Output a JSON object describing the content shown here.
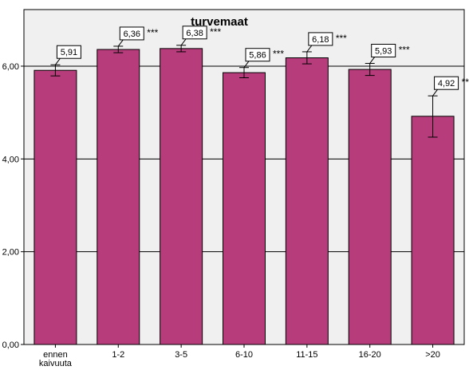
{
  "chart_data": {
    "type": "bar",
    "title": "turvemaat",
    "categories": [
      [
        "ennen",
        "kaivuuta"
      ],
      [
        "1-2"
      ],
      [
        "3-5"
      ],
      [
        "6-10"
      ],
      [
        "11-15"
      ],
      [
        "16-20"
      ],
      [
        ">20"
      ]
    ],
    "values": [
      5.91,
      6.36,
      6.38,
      5.86,
      6.18,
      5.93,
      4.92
    ],
    "value_labels": [
      "5,91",
      "6,36",
      "6,38",
      "5,86",
      "6,18",
      "5,93",
      "4,92"
    ],
    "significance": [
      "",
      "***",
      "***",
      "***",
      "***",
      "***",
      "**"
    ],
    "error_low": [
      5.79,
      6.29,
      6.31,
      5.75,
      6.05,
      5.8,
      4.47
    ],
    "error_high": [
      6.03,
      6.43,
      6.45,
      5.97,
      6.31,
      6.06,
      5.36
    ],
    "ylim": [
      0,
      7.22
    ],
    "yticks": [
      0,
      2,
      4,
      6
    ],
    "ytick_labels": [
      "0,00",
      "2,00",
      "4,00",
      "6,00"
    ],
    "xlabel": "",
    "ylabel": "",
    "grid": "horizontal",
    "colors": {
      "bar": "#b63c7b",
      "plot_background": "#f0f0f0",
      "grid": "#000000"
    }
  }
}
